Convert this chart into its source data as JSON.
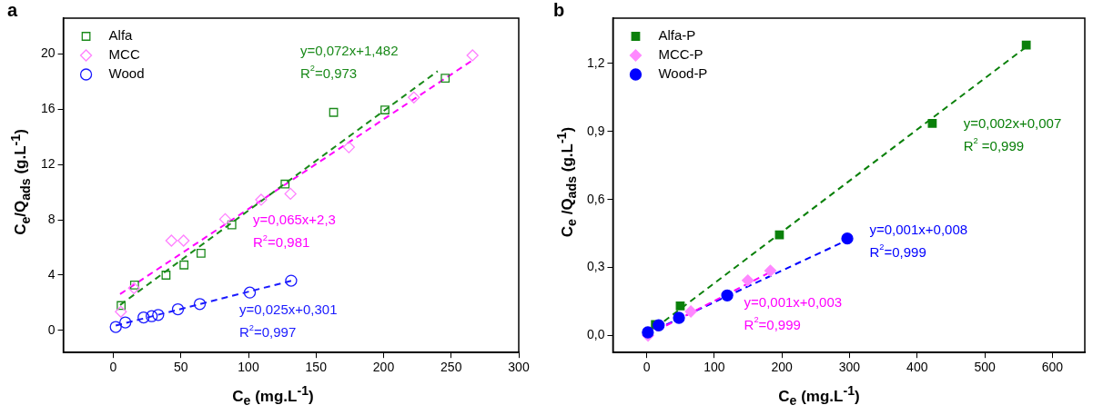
{
  "chart_data": [
    {
      "type": "scatter",
      "title": "a",
      "xlabel": "C$_{e}$ (mg.L$^{-1}$)",
      "ylabel": "C$_{e}$/Q$_{ads}$ (g.L$^{-1}$)",
      "xlim": [
        -37,
        300
      ],
      "ylim": [
        -1.6,
        22.6
      ],
      "xticks": [
        0,
        50,
        100,
        150,
        200,
        250,
        300
      ],
      "yticks": [
        0,
        4,
        8,
        12,
        16,
        20
      ],
      "grid": false,
      "legend": "top left",
      "series": [
        {
          "name": "Alfa",
          "type": "scatter",
          "marker": "square",
          "color": "#1a8a1a",
          "x": [
            5.8,
            15.7,
            39,
            52.3,
            64.9,
            87.7,
            127.1,
            163,
            201,
            245.6
          ],
          "values": [
            1.8,
            3.28,
            4.0,
            4.74,
            5.58,
            7.64,
            10.59,
            15.78,
            15.96,
            18.25
          ]
        },
        {
          "name": "MCC",
          "type": "scatter",
          "marker": "diamond",
          "color": "#ff80ff",
          "x": [
            5.6,
            15.3,
            43,
            52,
            82.8,
            109.4,
            131.1,
            174.3,
            222.4,
            265.8
          ],
          "values": [
            1.35,
            3.06,
            6.5,
            6.5,
            8.05,
            9.46,
            9.89,
            13.26,
            16.86,
            19.91
          ]
        },
        {
          "name": "Wood",
          "type": "scatter",
          "marker": "circle",
          "color": "#1a1aff",
          "x": [
            1.8,
            8.9,
            22.4,
            28.4,
            33.2,
            47.8,
            64,
            101,
            131.6
          ],
          "values": [
            0.25,
            0.58,
            0.94,
            1.03,
            1.12,
            1.53,
            1.91,
            2.74,
            3.6
          ]
        },
        {
          "type": "line",
          "line_style": "dashed",
          "color": "#1a8a1a",
          "x": [
            5,
            240
          ],
          "values": [
            1.84,
            18.76
          ]
        },
        {
          "type": "line",
          "line_style": "dashed",
          "color": "#ff00ff",
          "x": [
            5,
            265
          ],
          "values": [
            2.63,
            19.5
          ]
        },
        {
          "type": "line",
          "line_style": "dashed",
          "color": "#1a1aff",
          "x": [
            1.8,
            131.6
          ],
          "values": [
            0.35,
            3.59
          ]
        }
      ],
      "annotations": [
        "y=0,072x+1,482",
        "R$^{2}$=0,973",
        "y=0,065x+2,3",
        "R$^{2}$=0,981",
        "y=0,025x+0,301",
        "R$^{2}$=0,997"
      ]
    },
    {
      "type": "scatter",
      "title": "b",
      "xlabel": "C$_{e}$ (mg.L$^{-1}$)",
      "ylabel": "C$_{e}$ /Q$_{ads}$ (g.L$^{-1}$)",
      "xlim": [
        -50,
        648
      ],
      "ylim": [
        -0.075,
        1.4
      ],
      "xticks": [
        0,
        100,
        200,
        300,
        400,
        500,
        600
      ],
      "yticks": [
        {
          "value": 0,
          "label": "0,0"
        },
        {
          "value": 0.3,
          "label": "0,3"
        },
        {
          "value": 0.6,
          "label": "0,6"
        },
        {
          "value": 0.9,
          "label": "0,9"
        },
        {
          "value": 1.2,
          "label": "1,2"
        }
      ],
      "grid": false,
      "legend": "top left",
      "series": [
        {
          "name": "Alfa-P",
          "type": "scatter",
          "marker": "square",
          "color": "#0a800a",
          "x": [
            12.9,
            49.6,
            196.3,
            422.4,
            561.4
          ],
          "values": [
            0.048,
            0.131,
            0.444,
            0.936,
            1.281
          ]
        },
        {
          "name": "MCC-P",
          "type": "scatter",
          "marker": "diamond",
          "color": "#ff88ff",
          "x": [
            2,
            65.3,
            149.6,
            182.9
          ],
          "values": [
            0,
            0.106,
            0.243,
            0.286
          ]
        },
        {
          "name": "Wood-P",
          "type": "scatter",
          "marker": "circle",
          "color": "#0000ff",
          "x": [
            1.7,
            17.7,
            47.7,
            119.1,
            296.7
          ],
          "values": [
            0.014,
            0.045,
            0.078,
            0.177,
            0.428
          ]
        },
        {
          "type": "line",
          "line_style": "dashed",
          "color": "#0a800a",
          "x": [
            0,
            560
          ],
          "values": [
            0.005,
            1.27
          ]
        },
        {
          "type": "line",
          "line_style": "dashed",
          "color": "#ff00ff",
          "x": [
            0,
            183
          ],
          "values": [
            0,
            0.28
          ]
        },
        {
          "type": "line",
          "line_style": "dashed",
          "color": "#0000ff",
          "x": [
            0,
            296
          ],
          "values": [
            0.008,
            0.42
          ]
        }
      ],
      "annotations": [
        "y=0,002x+0,007",
        "R$^{2}$ =0,999",
        "y=0,001x+0,003",
        "R$^{2}$=0,999",
        "y=0,001x+0,008",
        "R$^{2}$=0,999"
      ]
    }
  ]
}
